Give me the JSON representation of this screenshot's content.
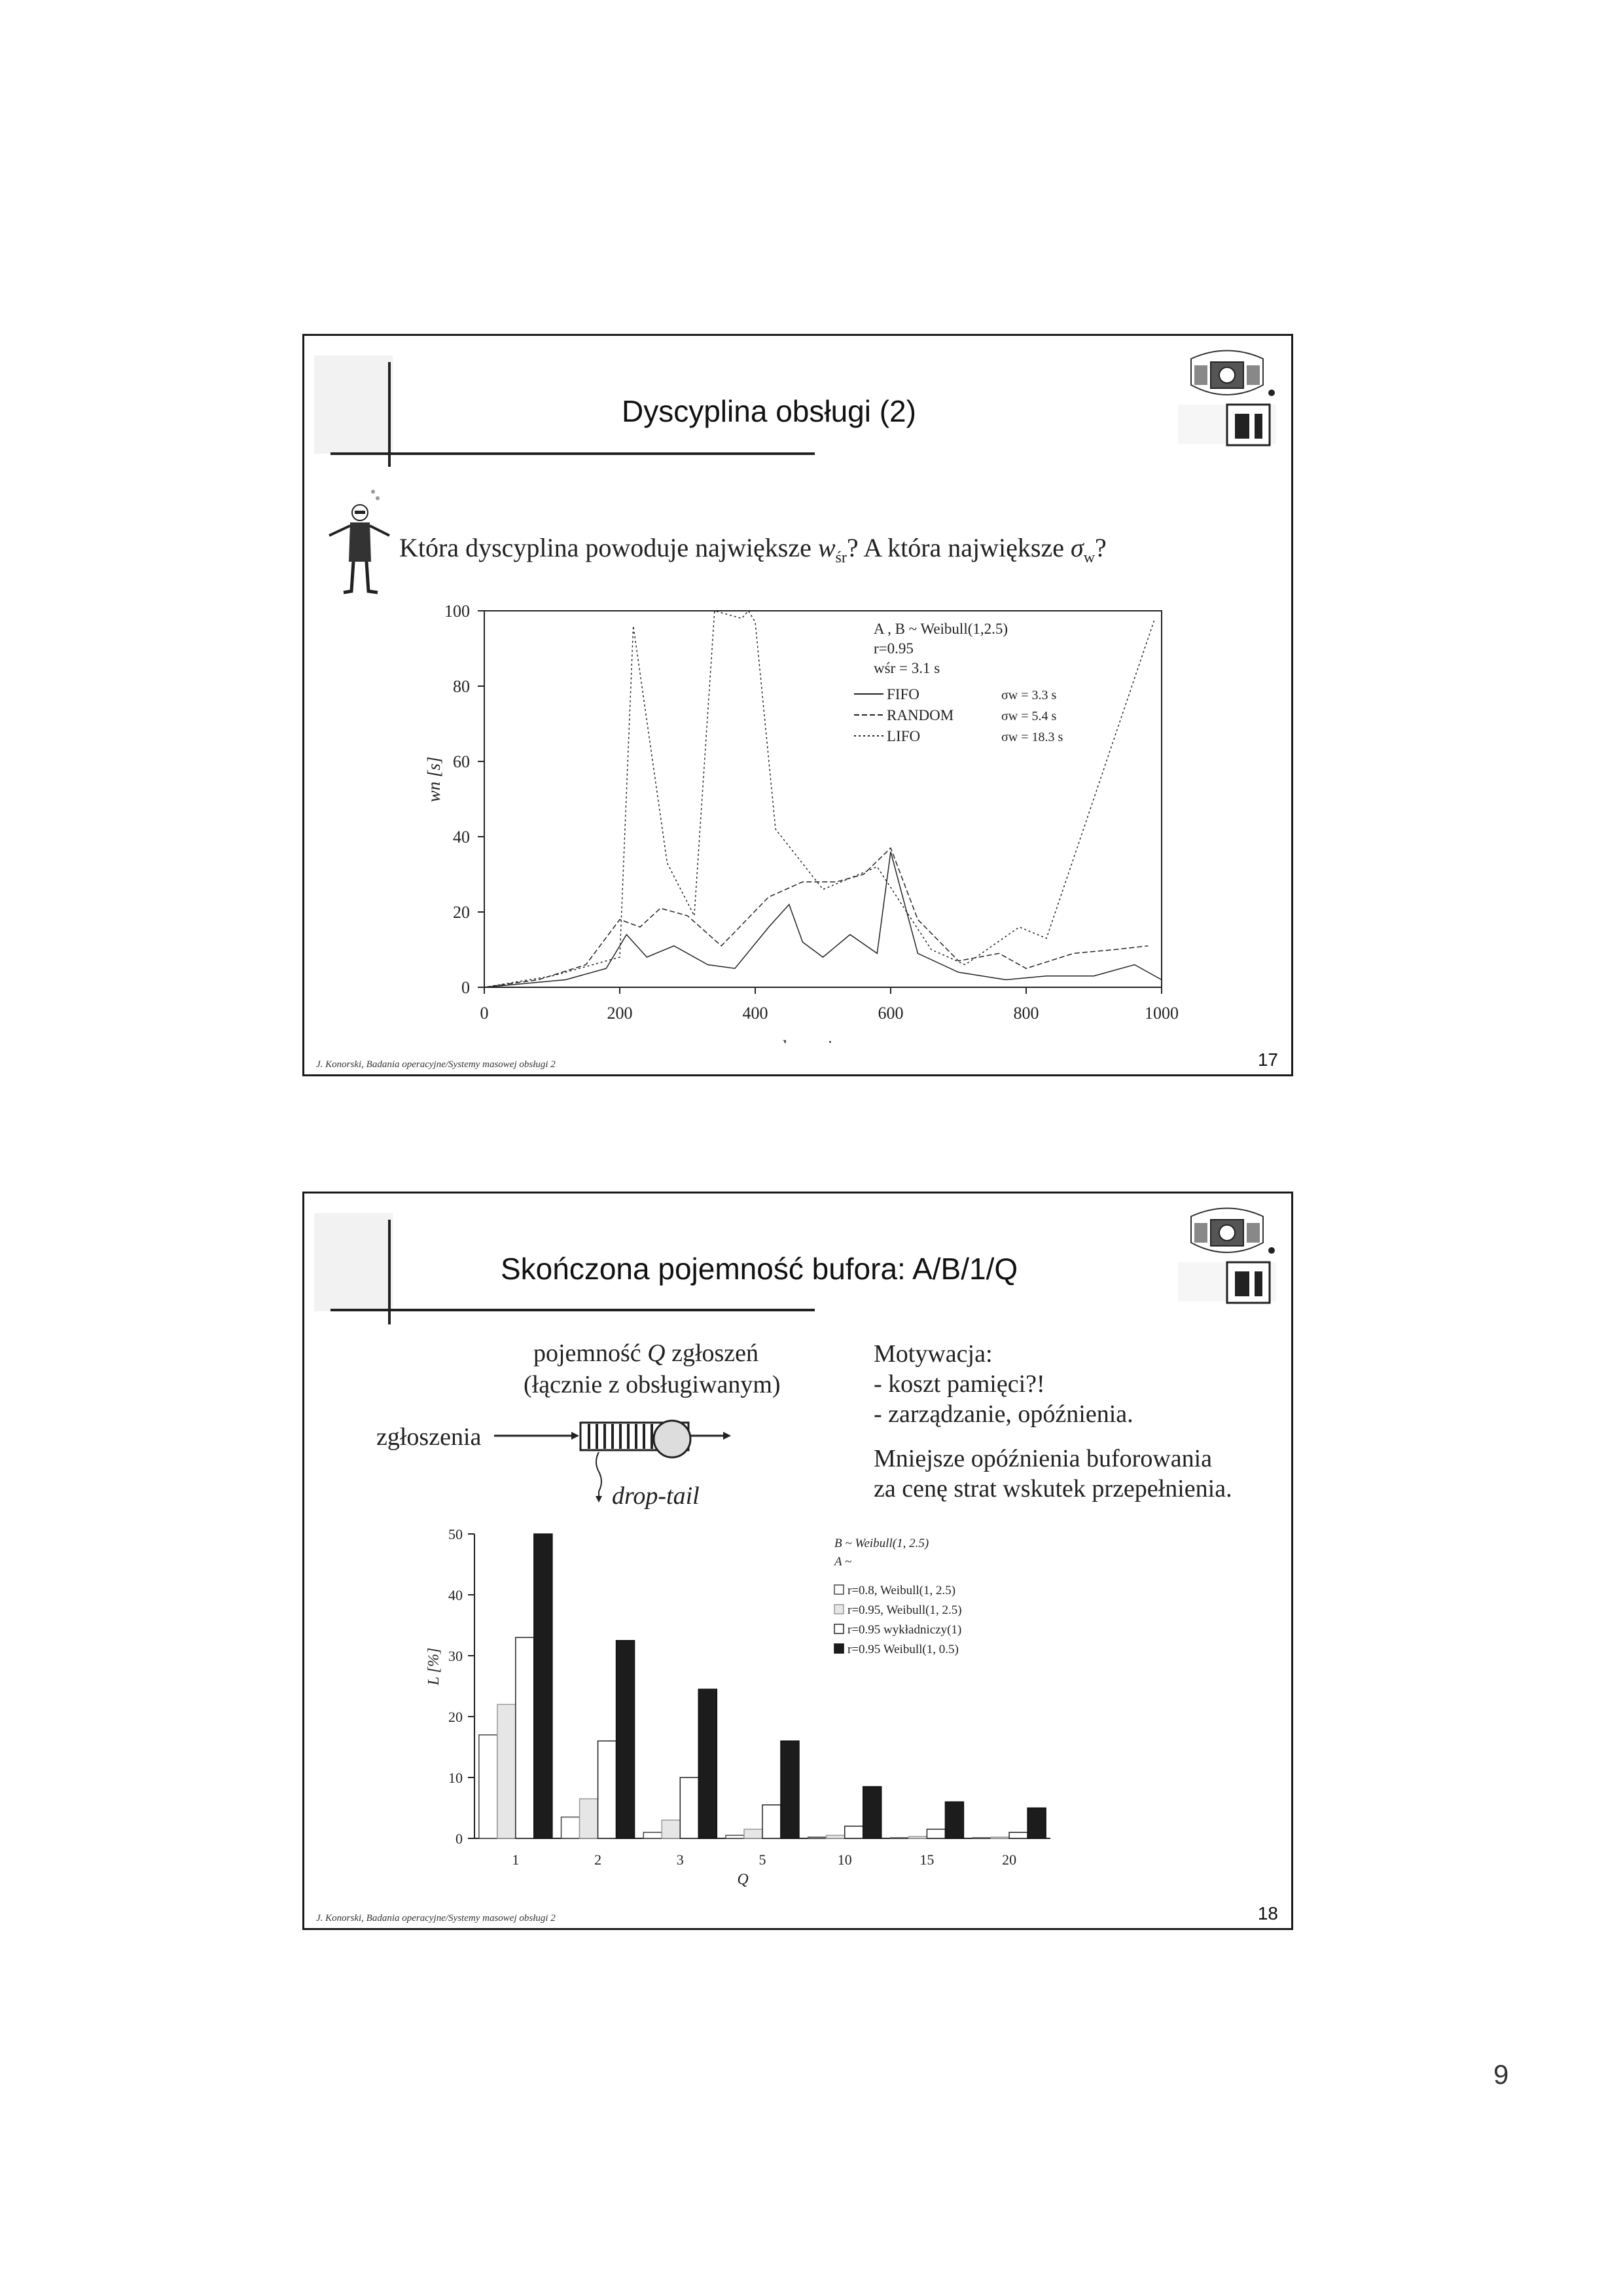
{
  "page_number": "9",
  "slide1": {
    "title": "Dyscyplina obsługi (2)",
    "question_part1": "Która dyscyplina powoduje największe ",
    "question_w": "w",
    "question_w_sub": "śr",
    "question_part2": "? A która największe ",
    "question_sigma": "σ",
    "question_sigma_sub": "w",
    "question_end": "?",
    "credit": "J. Konorski, Badania operacyjne/Systemy masowej obsługi 2",
    "slide_number": "17"
  },
  "slide2": {
    "title": "Skończona pojemność bufora: A/B/1/Q",
    "capacity_line1_a": "pojemność ",
    "capacity_line1_q": "Q",
    "capacity_line1_b": " zgłoszeń",
    "capacity_line2": "(łącznie z obsługiwanym)",
    "arrivals_label": "zgłoszenia",
    "droptail_label": "drop-tail",
    "motivation_title": "Motywacja:",
    "motivation_item1": "- koszt pamięci?!",
    "motivation_item2": "- zarządzanie, opóźnienia.",
    "conclusion_line1": "Mniejsze opóźnienia buforowania",
    "conclusion_line2": "za cenę strat wskutek przepełnienia.",
    "credit": "J. Konorski, Badania operacyjne/Systemy masowej obsługi 2",
    "slide_number": "18"
  },
  "chart_data": [
    {
      "type": "line",
      "xlabel": "zgłoszenie n",
      "ylabel": "wn [s]",
      "xlim": [
        0,
        1000
      ],
      "ylim": [
        0,
        100
      ],
      "x_ticks": [
        0,
        200,
        400,
        600,
        800,
        1000
      ],
      "y_ticks": [
        0,
        20,
        40,
        60,
        80,
        100
      ],
      "legend_position": "top-right",
      "annotations": [
        "A , B ~ Weibull(1,2.5)",
        "r=0.95",
        "wśr = 3.1 s"
      ],
      "series": [
        {
          "name": "FIFO",
          "sigma": "σw = 3.3 s",
          "style": "solid",
          "x": [
            0,
            60,
            120,
            180,
            210,
            240,
            280,
            330,
            370,
            420,
            450,
            470,
            500,
            540,
            580,
            600,
            640,
            700,
            770,
            830,
            900,
            960,
            1000
          ],
          "y": [
            0,
            1,
            2,
            5,
            14,
            8,
            11,
            6,
            5,
            16,
            22,
            12,
            8,
            14,
            9,
            36,
            9,
            4,
            2,
            3,
            3,
            6,
            2
          ]
        },
        {
          "name": "RANDOM",
          "sigma": "σw = 5.4 s",
          "style": "dashed",
          "x": [
            0,
            80,
            150,
            200,
            230,
            260,
            300,
            350,
            420,
            470,
            520,
            560,
            600,
            640,
            700,
            760,
            800,
            870,
            930,
            980
          ],
          "y": [
            0,
            2,
            6,
            18,
            16,
            21,
            19,
            11,
            24,
            28,
            28,
            30,
            37,
            18,
            7,
            9,
            5,
            9,
            10,
            11
          ]
        },
        {
          "name": "LIFO",
          "sigma": "σw = 18.3 s",
          "style": "dotted",
          "x": [
            0,
            100,
            200,
            220,
            270,
            310,
            340,
            360,
            380,
            390,
            400,
            430,
            500,
            580,
            660,
            710,
            790,
            830,
            990
          ],
          "y": [
            0,
            3,
            8,
            96,
            33,
            19,
            100,
            99,
            98,
            100,
            97,
            42,
            26,
            32,
            10,
            6,
            16,
            13,
            98
          ]
        }
      ]
    },
    {
      "type": "bar",
      "xlabel": "Q",
      "ylabel": "L [%]",
      "ylim": [
        0,
        50
      ],
      "y_ticks": [
        0,
        10,
        20,
        30,
        40,
        50
      ],
      "categories": [
        "1",
        "2",
        "3",
        "5",
        "10",
        "15",
        "20"
      ],
      "legend_position": "top-right",
      "legend_header": [
        "B ~ Weibull(1, 2.5)",
        "A ~"
      ],
      "series": [
        {
          "name": "r=0.8, Weibull(1, 2.5)",
          "values": [
            17,
            3.5,
            1,
            0.5,
            0.2,
            0.1,
            0.1
          ]
        },
        {
          "name": "r=0.95, Weibull(1, 2.5)",
          "values": [
            22,
            6.5,
            3,
            1.5,
            0.5,
            0.3,
            0.2
          ]
        },
        {
          "name": "r=0.95 wykładniczy(1)",
          "values": [
            33,
            16,
            10,
            5.5,
            2,
            1.5,
            1
          ]
        },
        {
          "name": "r=0.95 Weibull(1, 0.5)",
          "values": [
            50,
            32.5,
            24.5,
            16,
            8.5,
            6,
            5
          ]
        }
      ]
    }
  ]
}
